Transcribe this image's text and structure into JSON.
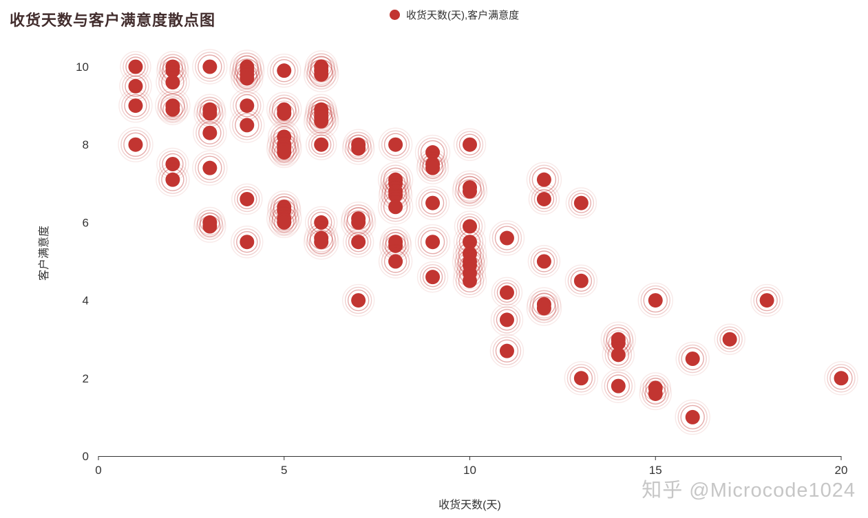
{
  "watermark": "知乎 @Microcode1024",
  "chart_data": {
    "type": "scatter",
    "title": "收货天数与客户满意度散点图",
    "xlabel": "收货天数(天)",
    "ylabel": "客户满意度",
    "xlim": [
      0,
      20
    ],
    "ylim": [
      0,
      10
    ],
    "x_ticks": [
      0,
      5,
      10,
      15,
      20
    ],
    "y_ticks": [
      0,
      2,
      4,
      6,
      8,
      10
    ],
    "grid": false,
    "legend_position": "top-center",
    "marker_style": "effect-scatter-ripple",
    "axis_color": "#333333",
    "series": [
      {
        "name": "收货天数(天),客户满意度",
        "color": "#c23531",
        "points": [
          [
            1,
            10
          ],
          [
            1,
            9.5
          ],
          [
            1,
            9
          ],
          [
            1,
            8
          ],
          [
            2,
            10
          ],
          [
            2,
            9.9
          ],
          [
            2,
            9.6
          ],
          [
            2,
            9
          ],
          [
            2,
            8.9
          ],
          [
            2,
            7.5
          ],
          [
            2,
            7.1
          ],
          [
            3,
            10
          ],
          [
            3,
            8.9
          ],
          [
            3,
            8.8
          ],
          [
            3,
            8.3
          ],
          [
            3,
            7.4
          ],
          [
            3,
            6
          ],
          [
            3,
            5.9
          ],
          [
            4,
            10
          ],
          [
            4,
            9.9
          ],
          [
            4,
            9.8
          ],
          [
            4,
            9.7
          ],
          [
            4,
            9
          ],
          [
            4,
            8.5
          ],
          [
            4,
            6.6
          ],
          [
            4,
            5.5
          ],
          [
            5,
            9.9
          ],
          [
            5,
            8.9
          ],
          [
            5,
            8.8
          ],
          [
            5,
            8.2
          ],
          [
            5,
            8
          ],
          [
            5,
            7.9
          ],
          [
            5,
            7.8
          ],
          [
            5,
            6.4
          ],
          [
            5,
            6.3
          ],
          [
            5,
            6.1
          ],
          [
            5,
            6
          ],
          [
            6,
            10
          ],
          [
            6,
            9.9
          ],
          [
            6,
            9.8
          ],
          [
            6,
            8.9
          ],
          [
            6,
            8.8
          ],
          [
            6,
            8.7
          ],
          [
            6,
            8.6
          ],
          [
            6,
            8
          ],
          [
            6,
            6
          ],
          [
            6,
            5.6
          ],
          [
            6,
            5.5
          ],
          [
            7,
            8
          ],
          [
            7,
            7.9
          ],
          [
            7,
            6.1
          ],
          [
            7,
            6
          ],
          [
            7,
            5.5
          ],
          [
            7,
            4
          ],
          [
            8,
            8
          ],
          [
            8,
            7.1
          ],
          [
            8,
            7
          ],
          [
            8,
            6.8
          ],
          [
            8,
            6.7
          ],
          [
            8,
            6.4
          ],
          [
            8,
            5.5
          ],
          [
            8,
            5.4
          ],
          [
            8,
            5
          ],
          [
            9,
            7.8
          ],
          [
            9,
            7.5
          ],
          [
            9,
            7.4
          ],
          [
            9,
            6.5
          ],
          [
            9,
            5.5
          ],
          [
            9,
            4.6
          ],
          [
            10,
            8
          ],
          [
            10,
            6.9
          ],
          [
            10,
            6.8
          ],
          [
            10,
            5.9
          ],
          [
            10,
            5.5
          ],
          [
            10,
            5.2
          ],
          [
            10,
            5
          ],
          [
            10,
            4.9
          ],
          [
            10,
            4.7
          ],
          [
            10,
            4.5
          ],
          [
            11,
            5.6
          ],
          [
            11,
            4.2
          ],
          [
            11,
            3.5
          ],
          [
            11,
            2.7
          ],
          [
            12,
            7.1
          ],
          [
            12,
            6.6
          ],
          [
            12,
            5
          ],
          [
            12,
            3.9
          ],
          [
            12,
            3.8
          ],
          [
            13,
            6.5
          ],
          [
            13,
            4.5
          ],
          [
            13,
            2
          ],
          [
            14,
            3
          ],
          [
            14,
            2.9
          ],
          [
            14,
            2.6
          ],
          [
            14,
            1.8
          ],
          [
            15,
            4
          ],
          [
            15,
            1.75
          ],
          [
            15,
            1.6
          ],
          [
            16,
            2.5
          ],
          [
            16,
            1
          ],
          [
            17,
            3
          ],
          [
            18,
            4
          ],
          [
            20,
            2
          ]
        ]
      }
    ]
  }
}
